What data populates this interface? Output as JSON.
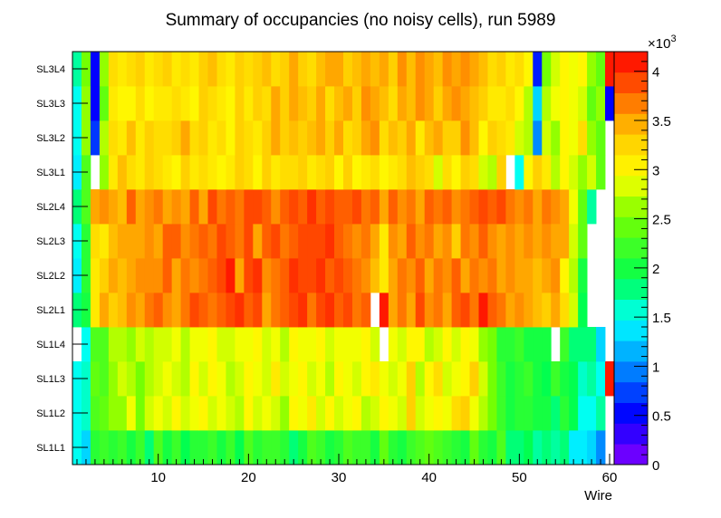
{
  "chart_data": {
    "type": "heatmap",
    "title": "Summary of occupancies (no noisy cells), run 5989",
    "xlabel": "Wire",
    "ylabel": "",
    "x_range": [
      0.5,
      60.5
    ],
    "x_ticks": [
      "10",
      "20",
      "30",
      "40",
      "50",
      "60"
    ],
    "y_categories": [
      "SL1L1",
      "SL1L2",
      "SL1L3",
      "SL1L4",
      "SL2L1",
      "SL2L2",
      "SL2L3",
      "SL2L4",
      "SL3L1",
      "SL3L2",
      "SL3L3",
      "SL3L4"
    ],
    "z_range": [
      0,
      4200
    ],
    "colorbar": {
      "exponent_label": "×10",
      "exponent_power": "3",
      "tick_labels": [
        "0",
        "0.5",
        "1",
        "1.5",
        "2",
        "2.5",
        "3",
        "3.5",
        "4"
      ]
    },
    "cell_values_note": "values in counts; null = empty cell",
    "values": [
      [
        1500,
        1300,
        2100,
        2200,
        2100,
        2200,
        2000,
        2200,
        1800,
        2300,
        2000,
        2200,
        1900,
        2100,
        2100,
        2200,
        2000,
        2200,
        1900,
        2300,
        2100,
        2200,
        2200,
        2100,
        1800,
        2000,
        2300,
        2200,
        2000,
        2100,
        2300,
        2200,
        2200,
        2000,
        2400,
        2100,
        2000,
        2200,
        2300,
        2400,
        2300,
        2200,
        2100,
        2000,
        2400,
        2100,
        2000,
        2300,
        1800,
        1800,
        1900,
        1700,
        1800,
        1700,
        1800,
        1400,
        1400,
        1300,
        1000,
        null
      ],
      [
        1500,
        1600,
        2300,
        2400,
        2600,
        2600,
        2900,
        2500,
        2800,
        2900,
        2800,
        3000,
        2800,
        2900,
        3000,
        2800,
        2900,
        2800,
        2700,
        3000,
        2800,
        2900,
        2800,
        2600,
        3000,
        2900,
        3100,
        2800,
        3000,
        2800,
        2900,
        3000,
        2700,
        2800,
        3000,
        2900,
        2800,
        3300,
        2800,
        2900,
        3000,
        2900,
        3200,
        3300,
        2900,
        2700,
        2500,
        2200,
        2000,
        2100,
        2100,
        2000,
        2000,
        1800,
        2100,
        1900,
        1500,
        1500,
        1700,
        null
      ],
      [
        1500,
        1600,
        2400,
        2300,
        2600,
        2800,
        2700,
        2500,
        2700,
        2800,
        2900,
        2800,
        2700,
        3000,
        2800,
        3000,
        2900,
        2700,
        2800,
        3000,
        2900,
        2800,
        3100,
        2800,
        2900,
        3000,
        2800,
        2900,
        2700,
        3000,
        2900,
        2800,
        3000,
        3100,
        2900,
        2800,
        2900,
        3300,
        2700,
        3000,
        3200,
        2800,
        2900,
        3000,
        3300,
        2800,
        2500,
        2200,
        2000,
        2100,
        2200,
        2000,
        1900,
        2200,
        2000,
        1900,
        1600,
        1700,
        1500,
        4100
      ],
      [
        null,
        1500,
        2300,
        2300,
        2700,
        2700,
        2600,
        2800,
        2700,
        2800,
        2800,
        2900,
        2700,
        2900,
        2900,
        3000,
        2800,
        2800,
        2900,
        2900,
        3000,
        2800,
        2900,
        2700,
        3000,
        2900,
        2900,
        3000,
        2800,
        2900,
        2900,
        2900,
        3000,
        2800,
        null,
        2900,
        2800,
        3000,
        3000,
        2700,
        2800,
        3000,
        2800,
        3000,
        2900,
        2600,
        2500,
        2100,
        2100,
        2200,
        2000,
        2000,
        2000,
        null,
        2200,
        1800,
        1800,
        1800,
        1300,
        null
      ],
      [
        1800,
        2000,
        3100,
        3500,
        3300,
        3400,
        3600,
        3500,
        3700,
        3800,
        3600,
        3500,
        3700,
        3900,
        3800,
        3700,
        3800,
        3900,
        4000,
        3800,
        3900,
        3500,
        3700,
        3800,
        3900,
        4000,
        3700,
        3900,
        4000,
        3800,
        3900,
        3700,
        3800,
        null,
        4100,
        3500,
        3700,
        3500,
        3900,
        3600,
        3700,
        3500,
        3800,
        3900,
        3700,
        4100,
        3800,
        3700,
        3500,
        3600,
        3500,
        3400,
        3300,
        3500,
        3200,
        2800,
        1900,
        null,
        null,
        null
      ],
      [
        1400,
        2100,
        3100,
        3300,
        3500,
        3400,
        3500,
        3600,
        3600,
        3600,
        3800,
        3500,
        3700,
        3600,
        3700,
        3800,
        3900,
        4100,
        3500,
        3900,
        4000,
        3600,
        3700,
        3800,
        4000,
        3900,
        3900,
        4000,
        3800,
        3900,
        3800,
        3700,
        3600,
        3400,
        3100,
        3500,
        3700,
        3600,
        3800,
        3500,
        3700,
        3600,
        3800,
        3500,
        3700,
        3600,
        3700,
        3500,
        3600,
        3500,
        3500,
        3400,
        3500,
        3600,
        3000,
        2700,
        2000,
        null,
        null,
        null
      ],
      [
        1500,
        2100,
        3200,
        3100,
        3400,
        3500,
        3500,
        3500,
        3600,
        3500,
        3800,
        3800,
        3600,
        3700,
        3800,
        3700,
        3900,
        3800,
        3700,
        3900,
        3500,
        3800,
        3900,
        3700,
        3800,
        3900,
        3900,
        3900,
        4000,
        3800,
        3700,
        3600,
        3700,
        3500,
        3100,
        3600,
        3500,
        3800,
        3600,
        3700,
        3500,
        3600,
        3300,
        3700,
        3600,
        3800,
        3600,
        3500,
        3600,
        3500,
        3600,
        3500,
        3600,
        3500,
        3500,
        2800,
        2400,
        null,
        null,
        null
      ],
      [
        1800,
        2300,
        3500,
        3600,
        3500,
        3400,
        3800,
        3500,
        3600,
        3700,
        3500,
        3600,
        3500,
        3800,
        3500,
        3900,
        3700,
        3800,
        3700,
        3900,
        3900,
        3800,
        3600,
        3800,
        3900,
        3800,
        4000,
        3800,
        3900,
        3800,
        3800,
        3900,
        3700,
        3800,
        3500,
        3800,
        3600,
        3700,
        3500,
        3800,
        3700,
        3800,
        3600,
        3700,
        3800,
        3900,
        3800,
        3900,
        3700,
        3600,
        3700,
        3500,
        3700,
        3600,
        3500,
        2900,
        2400,
        1700,
        null,
        null
      ],
      [
        1400,
        2300,
        null,
        2600,
        3100,
        3400,
        3200,
        3100,
        3300,
        3200,
        3100,
        3000,
        3300,
        3100,
        3200,
        3100,
        3000,
        3100,
        3300,
        3200,
        3000,
        3300,
        3100,
        3200,
        3200,
        3300,
        3100,
        3200,
        3300,
        3000,
        3300,
        3000,
        3100,
        3200,
        3000,
        3100,
        3200,
        3400,
        3300,
        3200,
        2800,
        3200,
        3000,
        3300,
        3200,
        2800,
        2700,
        3300,
        null,
        1500,
        3000,
        3300,
        3100,
        2700,
        3000,
        2800,
        2600,
        2800,
        2400,
        null
      ],
      [
        1500,
        2600,
        700,
        2700,
        3200,
        3100,
        3400,
        3100,
        3300,
        3200,
        3200,
        3300,
        3500,
        3200,
        3300,
        3100,
        3200,
        3000,
        3300,
        3200,
        3100,
        3300,
        3500,
        3300,
        3400,
        3300,
        3400,
        3500,
        3300,
        3500,
        3200,
        3300,
        3500,
        3600,
        3200,
        3400,
        3300,
        3500,
        3100,
        3400,
        3500,
        3300,
        3300,
        3600,
        3400,
        3000,
        3300,
        3200,
        3100,
        2800,
        2700,
        1000,
        2800,
        2600,
        3000,
        2900,
        3200,
        2600,
        2400,
        null
      ],
      [
        1500,
        2600,
        500,
        2400,
        3100,
        3000,
        3000,
        3200,
        3000,
        3100,
        3100,
        3200,
        3100,
        3000,
        3300,
        3200,
        3100,
        3000,
        3300,
        3100,
        3300,
        3200,
        3500,
        3300,
        3500,
        3400,
        3300,
        3500,
        3200,
        3400,
        3500,
        3300,
        3600,
        3500,
        3400,
        3200,
        3500,
        3400,
        3600,
        3500,
        3300,
        3500,
        3600,
        3500,
        3400,
        3300,
        3100,
        3100,
        3200,
        3000,
        2700,
        1300,
        2700,
        2900,
        3000,
        2900,
        2800,
        2400,
        2600,
        500
      ],
      [
        1700,
        2500,
        500,
        2600,
        3200,
        3100,
        3200,
        3300,
        3100,
        3200,
        3300,
        3100,
        3200,
        3100,
        3300,
        3400,
        3200,
        3100,
        3300,
        3200,
        3300,
        3400,
        3200,
        3300,
        3500,
        3300,
        3200,
        3400,
        3500,
        3500,
        3300,
        3400,
        3500,
        3400,
        3500,
        3300,
        3600,
        3400,
        3600,
        3500,
        3400,
        3600,
        3500,
        3600,
        3500,
        3400,
        3200,
        3300,
        3100,
        3200,
        3000,
        600,
        2500,
        2800,
        3000,
        2900,
        3000,
        2600,
        2400,
        4100
      ]
    ]
  }
}
